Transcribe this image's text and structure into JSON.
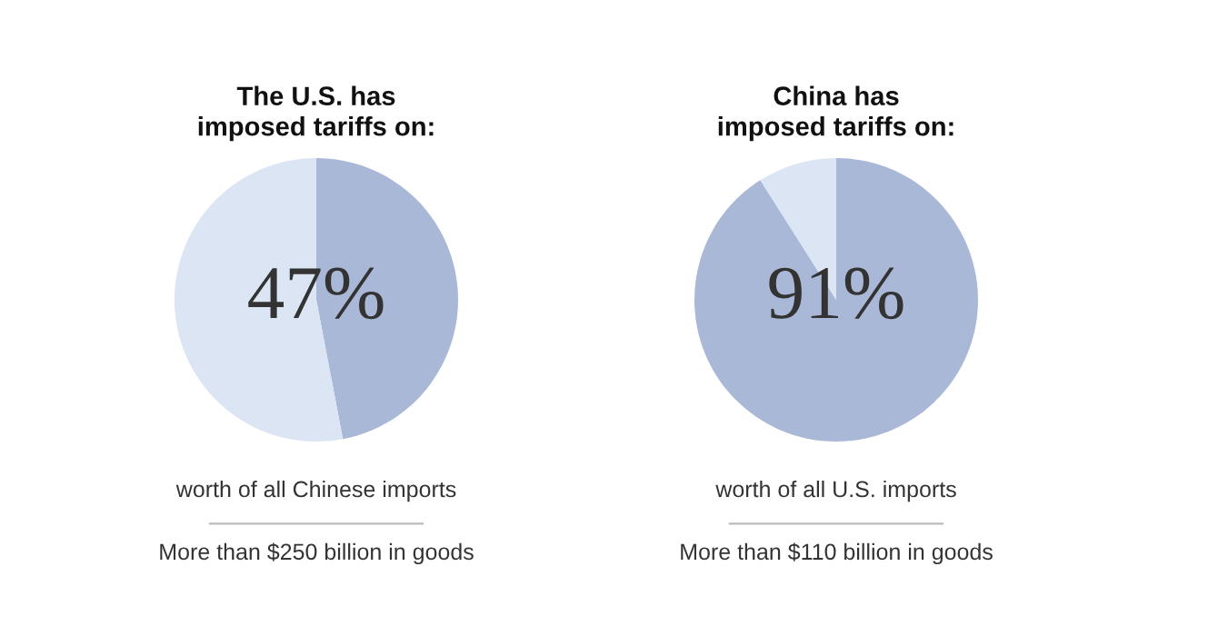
{
  "chart_data": [
    {
      "type": "pie",
      "title": "The U.S. has\nimposed tariffs on:",
      "categories": [
        null,
        null
      ],
      "values": [
        47,
        53
      ],
      "colors": [
        "#a8b8d6",
        "#dce5f4"
      ],
      "value_labels": [
        "47%",
        null
      ],
      "annotations": [
        "worth of all Chinese imports",
        "More than $250 billion in goods"
      ]
    },
    {
      "type": "pie",
      "title": "China has\nimposed tariffs on:",
      "categories": [
        null,
        null
      ],
      "values": [
        91,
        9
      ],
      "colors": [
        "#a8b8d6",
        "#dce5f4"
      ],
      "value_labels": [
        "91%",
        null
      ],
      "annotations": [
        "worth of all U.S. imports",
        "More than $110 billion in goods"
      ]
    }
  ]
}
